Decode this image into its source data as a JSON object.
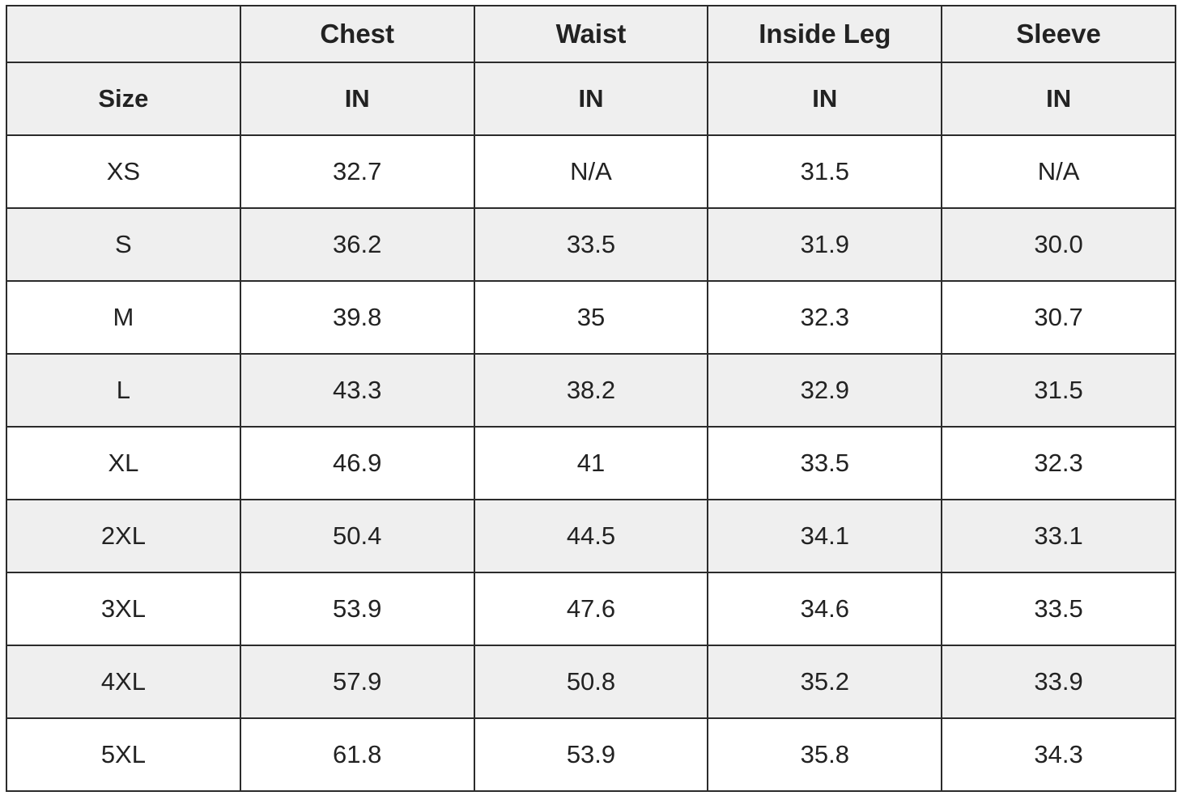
{
  "table": {
    "columns": [
      "Chest",
      "Waist",
      "Inside Leg",
      "Sleeve"
    ],
    "units_row": [
      "Size",
      "IN",
      "IN",
      "IN",
      "IN"
    ],
    "rows": [
      [
        "XS",
        "32.7",
        "N/A",
        "31.5",
        "N/A"
      ],
      [
        "S",
        "36.2",
        "33.5",
        "31.9",
        "30.0"
      ],
      [
        "M",
        "39.8",
        "35",
        "32.3",
        "30.7"
      ],
      [
        "L",
        "43.3",
        "38.2",
        "32.9",
        "31.5"
      ],
      [
        "XL",
        "46.9",
        "41",
        "33.5",
        "32.3"
      ],
      [
        "2XL",
        "50.4",
        "44.5",
        "34.1",
        "33.1"
      ],
      [
        "3XL",
        "53.9",
        "47.6",
        "34.6",
        "33.5"
      ],
      [
        "4XL",
        "57.9",
        "50.8",
        "35.2",
        "33.9"
      ],
      [
        "5XL",
        "61.8",
        "53.9",
        "35.8",
        "34.3"
      ]
    ]
  }
}
